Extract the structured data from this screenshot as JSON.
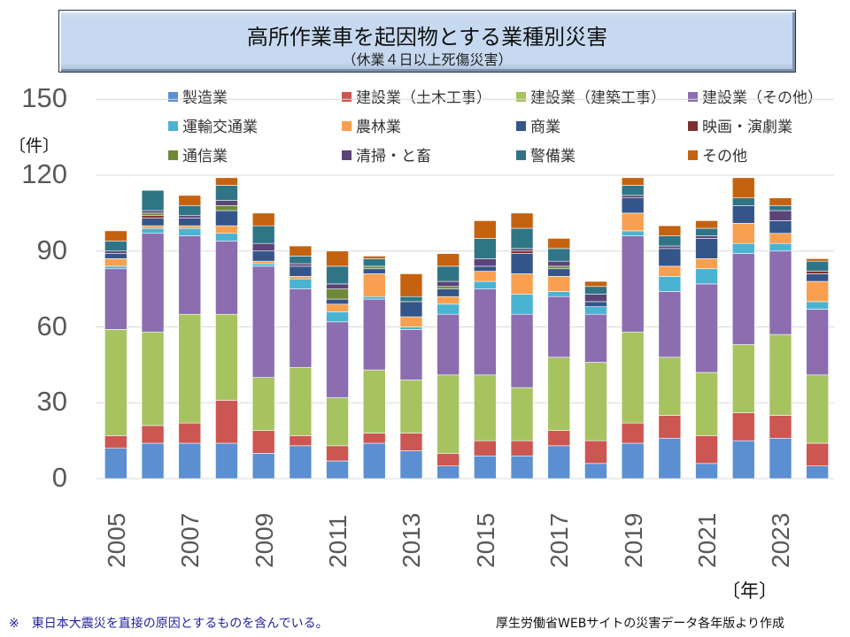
{
  "header": {
    "title": "高所作業車を起因物とする業種別災害",
    "subtitle": "（休業４日以上死傷災害）"
  },
  "footer": {
    "note": "※　東日本大震災を直接の原因とするものを含んでいる。",
    "source": "厚生労働省WEBサイトの災害データ各年版より作成"
  },
  "chart_data": {
    "type": "bar",
    "stacked": true,
    "title": "高所作業車を起因物とする業種別災害",
    "subtitle": "（休業４日以上死傷災害）",
    "xlabel": "〔年〕",
    "ylabel": "〔件〕",
    "ylim": [
      0,
      150
    ],
    "yticks": [
      0,
      30,
      60,
      90,
      120,
      150
    ],
    "grid": true,
    "legend_position": "top",
    "categories": [
      "2005",
      "2006",
      "2007",
      "2008",
      "2009",
      "2010",
      "2011",
      "2012",
      "2013",
      "2014",
      "2015",
      "2016",
      "2017",
      "2018",
      "2019",
      "2020",
      "2021",
      "2022",
      "2023",
      "2024"
    ],
    "xtick_labels": [
      "2005",
      "",
      "2007",
      "",
      "2009",
      "",
      "2011",
      "",
      "2013",
      "",
      "2015",
      "",
      "2017",
      "",
      "2019",
      "",
      "2021",
      "",
      "2023",
      ""
    ],
    "series": [
      {
        "name": "製造業",
        "color": "#5b8fd1",
        "values": [
          12,
          14,
          14,
          14,
          10,
          13,
          7,
          14,
          11,
          5,
          9,
          9,
          13,
          6,
          14,
          16,
          6,
          15,
          16,
          5
        ]
      },
      {
        "name": "建設業（土木工事）",
        "color": "#cc5652",
        "values": [
          5,
          7,
          8,
          17,
          9,
          4,
          6,
          4,
          7,
          5,
          6,
          6,
          6,
          9,
          8,
          9,
          11,
          11,
          9,
          9
        ]
      },
      {
        "name": "建設業（建築工事）",
        "color": "#a6c360",
        "values": [
          42,
          37,
          43,
          34,
          21,
          27,
          19,
          25,
          21,
          31,
          26,
          21,
          29,
          31,
          36,
          23,
          25,
          27,
          32,
          27
        ]
      },
      {
        "name": "建設業（その他）",
        "color": "#8b6db0",
        "values": [
          24,
          39,
          31,
          29,
          44,
          31,
          30,
          28,
          20,
          24,
          34,
          29,
          24,
          19,
          38,
          26,
          35,
          36,
          33,
          26
        ]
      },
      {
        "name": "運輸交通業",
        "color": "#4bb3d2",
        "values": [
          1,
          2,
          3,
          3,
          1,
          4,
          4,
          1,
          1,
          4,
          3,
          8,
          2,
          3,
          2,
          6,
          6,
          4,
          3,
          3
        ]
      },
      {
        "name": "農林業",
        "color": "#f8a04f",
        "values": [
          3,
          1,
          1,
          3,
          1,
          1,
          3,
          9,
          4,
          3,
          4,
          8,
          6,
          0,
          7,
          4,
          4,
          8,
          4,
          8
        ]
      },
      {
        "name": "商業",
        "color": "#34558a",
        "values": [
          2,
          3,
          3,
          6,
          4,
          4,
          2,
          2,
          6,
          3,
          2,
          8,
          3,
          2,
          6,
          7,
          8,
          7,
          5,
          3
        ]
      },
      {
        "name": "映画・演劇業",
        "color": "#7f2f2f",
        "values": [
          0,
          1,
          0,
          0,
          0,
          0,
          0,
          0,
          0,
          0,
          0,
          1,
          0,
          0,
          0,
          0,
          0,
          0,
          0,
          1
        ]
      },
      {
        "name": "通信業",
        "color": "#6e8a37",
        "values": [
          0,
          1,
          0,
          2,
          0,
          0,
          4,
          1,
          0,
          1,
          0,
          0,
          1,
          0,
          0,
          0,
          0,
          0,
          0,
          0
        ]
      },
      {
        "name": "清掃・と畜",
        "color": "#5b4477",
        "values": [
          1,
          1,
          1,
          2,
          3,
          1,
          2,
          0,
          0,
          2,
          3,
          1,
          2,
          3,
          1,
          1,
          1,
          0,
          4,
          0
        ]
      },
      {
        "name": "警備業",
        "color": "#2f7585",
        "values": [
          4,
          8,
          4,
          6,
          7,
          3,
          7,
          3,
          2,
          6,
          8,
          8,
          5,
          3,
          4,
          4,
          3,
          3,
          2,
          4
        ]
      },
      {
        "name": "その他",
        "color": "#c5620f",
        "values": [
          4,
          0,
          4,
          3,
          5,
          4,
          6,
          1,
          9,
          5,
          7,
          6,
          4,
          2,
          3,
          4,
          3,
          8,
          3,
          1
        ]
      }
    ]
  }
}
